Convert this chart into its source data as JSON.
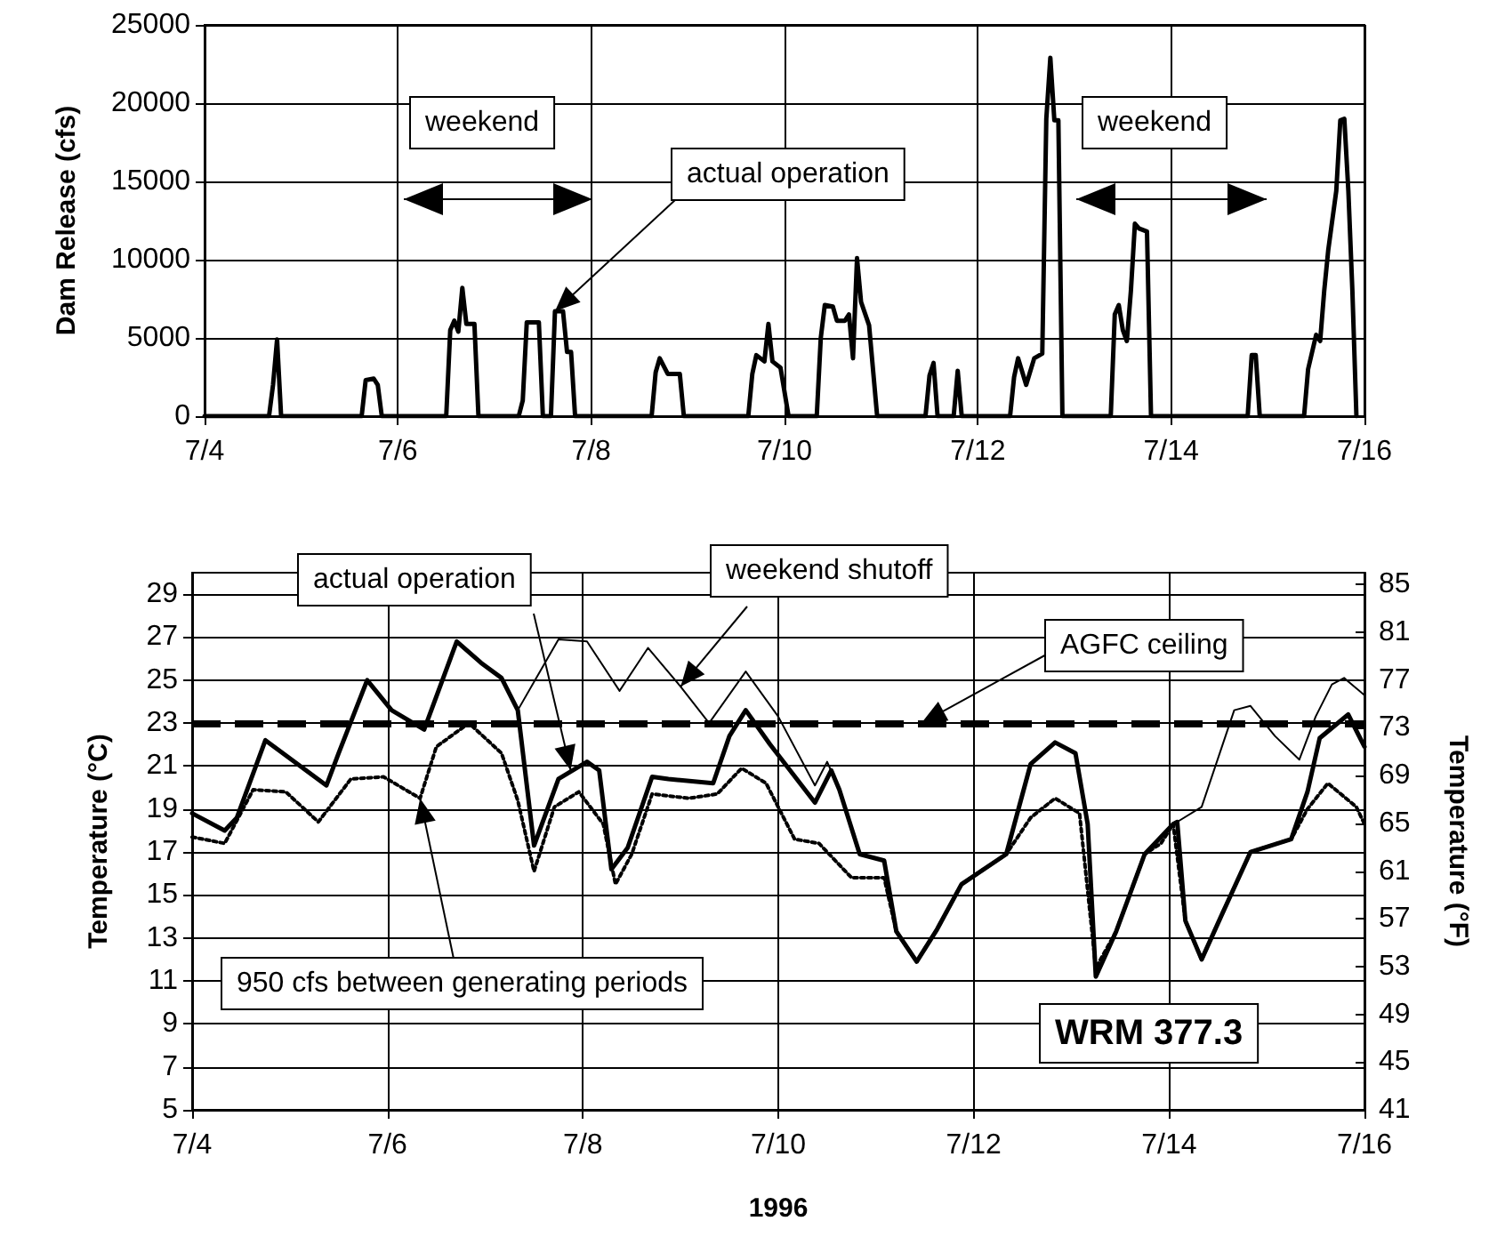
{
  "chart_data": [
    {
      "type": "line",
      "ylabel": "Dam Release (cfs)",
      "xlim": [
        "1996-07-04",
        "1996-07-16"
      ],
      "xticks": [
        {
          "value": "1996-07-04",
          "label": "7/4"
        },
        {
          "value": "1996-07-06",
          "label": "7/6"
        },
        {
          "value": "1996-07-08",
          "label": "7/8"
        },
        {
          "value": "1996-07-10",
          "label": "7/10"
        },
        {
          "value": "1996-07-12",
          "label": "7/12"
        },
        {
          "value": "1996-07-14",
          "label": "7/14"
        },
        {
          "value": "1996-07-16",
          "label": "7/16"
        }
      ],
      "ylim": [
        0,
        25000
      ],
      "yticks": [
        0,
        5000,
        10000,
        15000,
        20000,
        25000
      ],
      "grid": true,
      "series": [
        {
          "color": "#000000",
          "line_style": "solid",
          "x": [
            "1996-07-04T00:00",
            "1996-07-04T16:00",
            "1996-07-04T17:00",
            "1996-07-04T18:00",
            "1996-07-04T19:00",
            "1996-07-05T15:00",
            "1996-07-05T16:00",
            "1996-07-05T18:00",
            "1996-07-05T19:00",
            "1996-07-05T20:00",
            "1996-07-06T12:00",
            "1996-07-06T13:00",
            "1996-07-06T14:00",
            "1996-07-06T15:00",
            "1996-07-06T16:00",
            "1996-07-06T17:00",
            "1996-07-06T19:00",
            "1996-07-06T20:00",
            "1996-07-07T06:00",
            "1996-07-07T07:00",
            "1996-07-07T08:00",
            "1996-07-07T11:00",
            "1996-07-07T12:00",
            "1996-07-07T14:00",
            "1996-07-07T15:00",
            "1996-07-07T17:00",
            "1996-07-07T18:00",
            "1996-07-07T19:00",
            "1996-07-07T20:00",
            "1996-07-08T15:00",
            "1996-07-08T16:00",
            "1996-07-08T17:00",
            "1996-07-08T19:00",
            "1996-07-08T22:00",
            "1996-07-08T23:00",
            "1996-07-09T15:00",
            "1996-07-09T16:00",
            "1996-07-09T17:00",
            "1996-07-09T19:00",
            "1996-07-09T20:00",
            "1996-07-09T21:00",
            "1996-07-09T23:00",
            "1996-07-10T01:00",
            "1996-07-10T08:00",
            "1996-07-10T09:00",
            "1996-07-10T10:00",
            "1996-07-10T12:00",
            "1996-07-10T13:00",
            "1996-07-10T15:00",
            "1996-07-10T16:00",
            "1996-07-10T17:00",
            "1996-07-10T18:00",
            "1996-07-10T19:00",
            "1996-07-10T21:00",
            "1996-07-10T23:00",
            "1996-07-11T11:00",
            "1996-07-11T12:00",
            "1996-07-11T13:00",
            "1996-07-11T14:00",
            "1996-07-11T18:00",
            "1996-07-11T19:00",
            "1996-07-11T20:00",
            "1996-07-12T08:00",
            "1996-07-12T09:00",
            "1996-07-12T10:00",
            "1996-07-12T12:00",
            "1996-07-12T14:00",
            "1996-07-12T16:00",
            "1996-07-12T17:00",
            "1996-07-12T18:00",
            "1996-07-12T19:00",
            "1996-07-12T20:00",
            "1996-07-12T21:00",
            "1996-07-13T09:00",
            "1996-07-13T10:00",
            "1996-07-13T11:00",
            "1996-07-13T12:00",
            "1996-07-13T13:00",
            "1996-07-13T14:00",
            "1996-07-13T15:00",
            "1996-07-13T16:00",
            "1996-07-13T18:00",
            "1996-07-13T19:00",
            "1996-07-14T19:00",
            "1996-07-14T20:00",
            "1996-07-14T21:00",
            "1996-07-14T22:00",
            "1996-07-15T09:00",
            "1996-07-15T10:00",
            "1996-07-15T12:00",
            "1996-07-15T13:00",
            "1996-07-15T14:00",
            "1996-07-15T15:00",
            "1996-07-15T17:00",
            "1996-07-15T18:00",
            "1996-07-15T19:00",
            "1996-07-15T20:00",
            "1996-07-15T21:00",
            "1996-07-15T22:00"
          ],
          "values": [
            0,
            0,
            2000,
            4900,
            0,
            0,
            2300,
            2400,
            2000,
            0,
            0,
            5500,
            6100,
            5400,
            8200,
            5900,
            5900,
            0,
            0,
            1000,
            6000,
            6000,
            0,
            0,
            6700,
            6700,
            4100,
            4100,
            0,
            0,
            2800,
            3700,
            2700,
            2700,
            0,
            0,
            2700,
            3900,
            3500,
            5900,
            3500,
            3100,
            0,
            0,
            5000,
            7100,
            7000,
            6100,
            6100,
            6500,
            3700,
            10100,
            7300,
            5800,
            0,
            0,
            2600,
            3400,
            0,
            0,
            2900,
            0,
            0,
            2500,
            3700,
            2000,
            3700,
            4000,
            19000,
            22900,
            18900,
            18900,
            0,
            0,
            6500,
            7100,
            5500,
            4800,
            8000,
            12300,
            12000,
            11800,
            0,
            0,
            3900,
            3900,
            0,
            0,
            3000,
            5200,
            4800,
            8000,
            10600,
            14400,
            18900,
            19000,
            14400,
            8000,
            0
          ]
        }
      ],
      "annotations": [
        "weekend",
        {
          "text": "actual operation",
          "x": "1996-07-07T15:00",
          "y": 6700
        },
        "weekend"
      ]
    },
    {
      "type": "line",
      "xlabel": "1996",
      "ylabel": "Temperature (°C)",
      "y2label": "Temperature (°F)",
      "xlim": [
        "1996-07-04",
        "1996-07-16"
      ],
      "xticks": [
        {
          "value": "1996-07-04",
          "label": "7/4"
        },
        {
          "value": "1996-07-06",
          "label": "7/6"
        },
        {
          "value": "1996-07-08",
          "label": "7/8"
        },
        {
          "value": "1996-07-10",
          "label": "7/10"
        },
        {
          "value": "1996-07-12",
          "label": "7/12"
        },
        {
          "value": "1996-07-14",
          "label": "7/14"
        },
        {
          "value": "1996-07-16",
          "label": "7/16"
        }
      ],
      "ylim": [
        5,
        30
      ],
      "yticks": [
        5,
        7,
        9,
        11,
        13,
        15,
        17,
        19,
        21,
        23,
        25,
        27,
        29
      ],
      "y2lim": [
        41,
        86
      ],
      "y2ticks": [
        41,
        45,
        49,
        53,
        57,
        61,
        65,
        69,
        73,
        77,
        81,
        85
      ],
      "grid": true,
      "series": [
        {
          "color": "#000000",
          "line_style": "solid",
          "x": [
            "1996-07-04T00:00",
            "1996-07-04T08:00",
            "1996-07-04T11:00",
            "1996-07-04T18:00",
            "1996-07-05T09:00",
            "1996-07-05T12:00",
            "1996-07-05T19:00",
            "1996-07-06T01:00",
            "1996-07-06T09:00",
            "1996-07-06T17:00",
            "1996-07-06T23:00",
            "1996-07-07T04:00",
            "1996-07-07T08:00",
            "1996-07-07T12:00",
            "1996-07-07T18:00",
            "1996-07-08T01:00",
            "1996-07-08T04:00",
            "1996-07-08T07:00",
            "1996-07-08T11:00",
            "1996-07-08T17:00",
            "1996-07-08T21:00",
            "1996-07-09T08:00",
            "1996-07-09T12:00",
            "1996-07-09T16:00",
            "1996-07-09T22:00",
            "1996-07-10T09:00",
            "1996-07-10T13:00",
            "1996-07-10T15:00",
            "1996-07-10T20:00",
            "1996-07-11T02:00",
            "1996-07-11T05:00",
            "1996-07-11T10:00",
            "1996-07-11T15:00",
            "1996-07-11T21:00",
            "1996-07-12T08:00",
            "1996-07-12T14:00",
            "1996-07-12T20:00",
            "1996-07-13T01:00",
            "1996-07-13T04:00",
            "1996-07-13T06:00",
            "1996-07-13T11:00",
            "1996-07-13T18:00",
            "1996-07-14T01:00",
            "1996-07-14T02:00",
            "1996-07-14T04:00",
            "1996-07-14T08:00",
            "1996-07-14T13:00",
            "1996-07-14T20:00",
            "1996-07-15T06:00",
            "1996-07-15T10:00",
            "1996-07-15T13:00",
            "1996-07-15T20:00",
            "1996-07-16T00:00"
          ],
          "values": [
            18.8,
            18.0,
            18.6,
            22.2,
            20.1,
            21.6,
            25.0,
            23.6,
            22.7,
            26.8,
            25.8,
            25.1,
            23.6,
            17.3,
            20.4,
            21.2,
            20.8,
            16.2,
            17.2,
            20.5,
            20.4,
            20.2,
            22.4,
            23.6,
            22.0,
            19.3,
            20.8,
            19.9,
            16.9,
            16.6,
            13.3,
            11.9,
            13.4,
            15.5,
            16.9,
            21.1,
            22.1,
            21.6,
            18.3,
            11.2,
            13.3,
            16.9,
            18.3,
            18.4,
            13.8,
            12.0,
            14.1,
            17.0,
            17.6,
            19.8,
            22.3,
            23.4,
            21.9
          ]
        },
        {
          "color": "#000000",
          "line_style": "solid",
          "x": [
            "1996-07-04T00:00",
            "1996-07-04T08:00",
            "1996-07-04T11:00",
            "1996-07-04T18:00",
            "1996-07-05T09:00",
            "1996-07-05T12:00",
            "1996-07-05T19:00",
            "1996-07-06T01:00",
            "1996-07-06T09:00",
            "1996-07-06T17:00",
            "1996-07-06T23:00",
            "1996-07-07T04:00",
            "1996-07-07T08:00",
            "1996-07-07T18:00",
            "1996-07-08T01:00",
            "1996-07-08T09:00",
            "1996-07-08T16:00",
            "1996-07-09T00:00",
            "1996-07-09T07:00",
            "1996-07-09T16:00",
            "1996-07-10T00:00",
            "1996-07-10T09:00",
            "1996-07-10T12:00",
            "1996-07-10T15:00",
            "1996-07-10T20:00",
            "1996-07-11T02:00",
            "1996-07-11T05:00",
            "1996-07-11T10:00",
            "1996-07-11T15:00",
            "1996-07-11T21:00",
            "1996-07-12T08:00",
            "1996-07-12T14:00",
            "1996-07-12T20:00",
            "1996-07-13T01:00",
            "1996-07-13T04:00",
            "1996-07-13T06:00",
            "1996-07-13T11:00",
            "1996-07-13T18:00",
            "1996-07-14T01:00",
            "1996-07-14T02:00",
            "1996-07-14T08:00",
            "1996-07-14T16:00",
            "1996-07-14T20:00",
            "1996-07-15T02:00",
            "1996-07-15T08:00",
            "1996-07-15T12:00",
            "1996-07-15T16:00",
            "1996-07-15T19:00",
            "1996-07-16T00:00"
          ],
          "values": [
            18.8,
            18.0,
            18.6,
            22.2,
            20.1,
            21.6,
            25.0,
            23.6,
            22.7,
            26.8,
            25.8,
            25.1,
            23.6,
            26.9,
            26.8,
            24.5,
            26.5,
            24.7,
            23.0,
            25.4,
            23.3,
            20.1,
            21.2,
            19.9,
            16.9,
            16.6,
            13.3,
            11.9,
            13.4,
            15.5,
            16.9,
            21.1,
            22.1,
            21.6,
            18.3,
            11.2,
            13.3,
            16.9,
            18.3,
            18.4,
            19.1,
            23.6,
            23.8,
            22.4,
            21.3,
            23.3,
            24.8,
            25.1,
            24.3
          ]
        },
        {
          "color": "#000000",
          "line_style": "dotted",
          "x": [
            "1996-07-04T00:00",
            "1996-07-04T08:00",
            "1996-07-04T15:00",
            "1996-07-04T23:00",
            "1996-07-05T07:00",
            "1996-07-05T15:00",
            "1996-07-05T23:00",
            "1996-07-06T08:00",
            "1996-07-06T12:00",
            "1996-07-06T20:00",
            "1996-07-07T04:00",
            "1996-07-07T08:00",
            "1996-07-07T12:00",
            "1996-07-07T17:00",
            "1996-07-07T23:00",
            "1996-07-08T05:00",
            "1996-07-08T08:00",
            "1996-07-08T12:00",
            "1996-07-08T17:00",
            "1996-07-09T02:00",
            "1996-07-09T09:00",
            "1996-07-09T15:00",
            "1996-07-09T21:00",
            "1996-07-10T04:00",
            "1996-07-10T10:00",
            "1996-07-10T12:00",
            "1996-07-10T18:00",
            "1996-07-11T02:00",
            "1996-07-11T05:00",
            "1996-07-11T10:00",
            "1996-07-11T15:00",
            "1996-07-11T21:00",
            "1996-07-12T08:00",
            "1996-07-12T14:00",
            "1996-07-12T20:00",
            "1996-07-13T02:00",
            "1996-07-13T06:00",
            "1996-07-13T11:00",
            "1996-07-13T18:00",
            "1996-07-13T22:00",
            "1996-07-14T01:00",
            "1996-07-14T04:00",
            "1996-07-14T08:00",
            "1996-07-14T13:00",
            "1996-07-14T20:00",
            "1996-07-15T06:00",
            "1996-07-15T10:00",
            "1996-07-15T15:00",
            "1996-07-15T22:00",
            "1996-07-16T00:00"
          ],
          "values": [
            17.7,
            17.4,
            19.9,
            19.8,
            18.4,
            20.4,
            20.5,
            19.5,
            21.9,
            23.0,
            21.6,
            19.4,
            16.1,
            19.1,
            19.8,
            18.3,
            15.5,
            16.9,
            19.7,
            19.5,
            19.7,
            20.9,
            20.2,
            17.6,
            17.4,
            17.0,
            15.8,
            15.8,
            13.3,
            11.9,
            13.4,
            15.5,
            16.9,
            18.6,
            19.5,
            18.8,
            11.6,
            13.3,
            16.9,
            17.4,
            18.3,
            13.8,
            12.0,
            14.1,
            17.0,
            17.6,
            19.0,
            20.2,
            19.1,
            18.3
          ]
        }
      ],
      "ref_lines": [
        {
          "axis": "y",
          "value": 23,
          "label": "AGFC ceiling",
          "color": "#000000",
          "line_style": "dashed"
        }
      ],
      "annotations": [
        {
          "text": "actual operation",
          "x": "1996-07-07T21:00",
          "y": 20.8
        },
        {
          "text": "weekend shutoff",
          "x": "1996-07-09T00:00",
          "y": 24.7
        },
        {
          "text": "950 cfs between generating periods",
          "x": "1996-07-06T08:00",
          "y": 19.5
        },
        "WRM 377.3"
      ]
    }
  ]
}
